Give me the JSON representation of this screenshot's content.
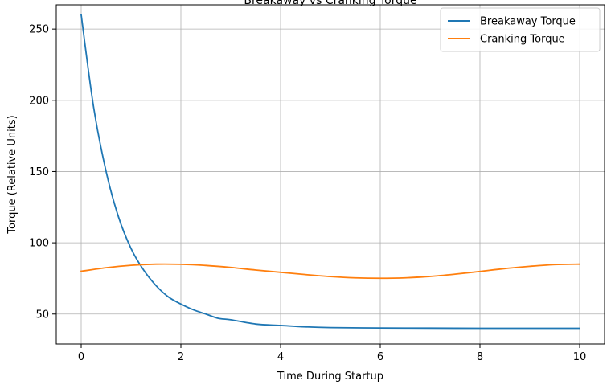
{
  "chart_data": {
    "type": "line",
    "title": "Breakaway vs Cranking Torque",
    "xlabel": "Time During Startup",
    "ylabel": "Torque (Relative Units)",
    "xlim": [
      -0.5,
      10.5
    ],
    "ylim": [
      29,
      267
    ],
    "xticks": [
      0,
      2,
      4,
      6,
      8,
      10
    ],
    "yticks": [
      50,
      100,
      150,
      200,
      250
    ],
    "grid": true,
    "legend_position": "upper right",
    "series": [
      {
        "name": "Breakaway Torque",
        "color": "#1f77b4",
        "x": [
          0,
          0.25,
          0.5,
          0.75,
          1.0,
          1.25,
          1.5,
          1.75,
          2.0,
          2.25,
          2.5,
          2.75,
          3.0,
          3.5,
          4.0,
          4.5,
          5.0,
          6.0,
          7.0,
          8.0,
          9.0,
          10.0
        ],
        "values": [
          260,
          195,
          150,
          118,
          96,
          81,
          70,
          62,
          57,
          53,
          50,
          47,
          46,
          43,
          42,
          41,
          40.5,
          40.2,
          40.1,
          40.0,
          40.0,
          40.0
        ]
      },
      {
        "name": "Cranking Torque",
        "color": "#ff7f0e",
        "x": [
          0,
          0.5,
          1.0,
          1.5,
          2.0,
          2.5,
          3.0,
          3.5,
          4.0,
          4.5,
          5.0,
          5.5,
          6.0,
          6.5,
          7.0,
          7.5,
          8.0,
          8.5,
          9.0,
          9.5,
          10.0
        ],
        "values": [
          80,
          82.5,
          84.2,
          85.0,
          84.9,
          84.1,
          82.7,
          80.9,
          79.3,
          77.7,
          76.3,
          75.4,
          75.1,
          75.4,
          76.4,
          78.0,
          79.9,
          81.9,
          83.5,
          84.7,
          85.0
        ]
      }
    ]
  }
}
